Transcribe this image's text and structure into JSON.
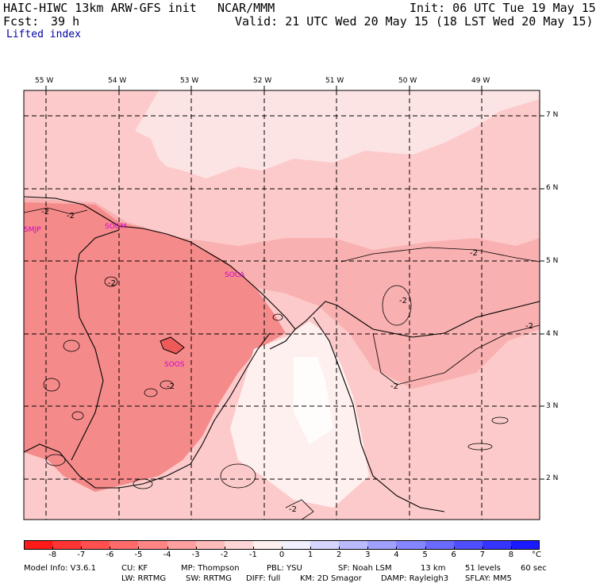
{
  "header": {
    "title_left": "HAIC-HIWC 13km ARW-GFS init",
    "title_center": "NCAR/MMM",
    "init": "Init: 06 UTC Tue 19 May 15",
    "fcst_label": "Fcst:",
    "fcst_value": "39 h",
    "valid": "Valid: 21 UTC Wed 20 May 15 (18 LST Wed 20 May 15)",
    "field": "Lifted index"
  },
  "map": {
    "longitudes": [
      "55 W",
      "54 W",
      "53 W",
      "52 W",
      "51 W",
      "50 W",
      "49 W"
    ],
    "latitudes": [
      "7 N",
      "6 N",
      "5 N",
      "4 N",
      "3 N",
      "2 N"
    ],
    "stations": [
      "SMJP",
      "SOGM",
      "SOCA",
      "SOOS"
    ],
    "contour_labels": [
      "-2",
      "-2",
      "-2",
      "-2",
      "-2",
      "-2",
      "-2",
      "-2",
      "-2"
    ],
    "colors": {
      "land_dark": "#f58a8a",
      "land_mid": "#f9b0b0",
      "ocean": "#fccaca",
      "pale": "#fde4e4",
      "white": "#fff5f5"
    }
  },
  "colorbar": {
    "ticks": [
      "-8",
      "-7",
      "-6",
      "-5",
      "-4",
      "-3",
      "-2",
      "-1",
      "0",
      "1",
      "2",
      "3",
      "4",
      "5",
      "6",
      "7",
      "8"
    ],
    "unit": "°C",
    "colors": [
      "#ff1a1a",
      "#ff3535",
      "#ff4f4f",
      "#ff6a6a",
      "#ff8585",
      "#ffa0a0",
      "#ffbaba",
      "#ffd5d5",
      "#fff0f0",
      "#f0f0ff",
      "#d5d5ff",
      "#babaff",
      "#a0a0ff",
      "#8585ff",
      "#6a6aff",
      "#4f4fff",
      "#3535ff",
      "#1a1aff"
    ]
  },
  "model_info": {
    "line1": [
      "Model Info: V3.6.1",
      "CU: KF",
      "MP: Thompson",
      "PBL: YSU",
      "SF: Noah LSM",
      "13 km",
      "51 levels",
      "60 sec"
    ],
    "line2": [
      "LW: RRTMG",
      "SW: RRTMG",
      "DIFF: full",
      "KM: 2D Smagor",
      "DAMP: Rayleigh3",
      "SFLAY: MM5"
    ]
  }
}
